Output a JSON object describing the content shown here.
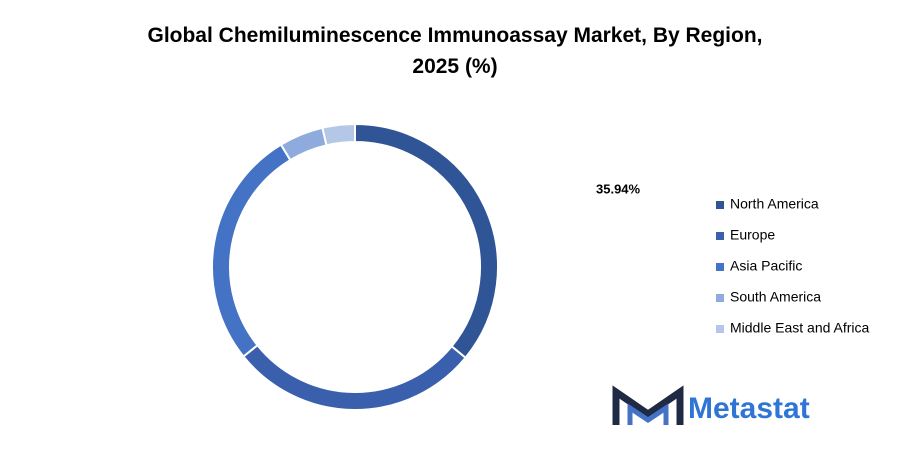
{
  "chart_data": {
    "type": "donut",
    "title": "Global Chemiluminescence Immunoassay Market, By Region, 2025 (%)",
    "categories": [
      "North America",
      "Europe",
      "Asia Pacific",
      "South America",
      "Middle East and Africa"
    ],
    "values": [
      35.94,
      28.3,
      27.1,
      5.0,
      3.66
    ],
    "value_labels": [
      "35.94%",
      null,
      null,
      null,
      null
    ],
    "colors": [
      "#2f5597",
      "#3a5fad",
      "#4472c4",
      "#8faadc",
      "#b4c7e7"
    ],
    "legend": "right"
  },
  "logo": "Metastat"
}
